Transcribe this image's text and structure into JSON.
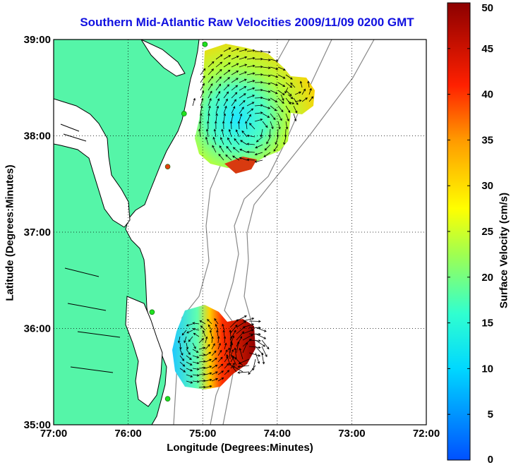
{
  "title": "Southern Mid-Atlantic Raw Velocities 2009/11/09 0200 GMT",
  "chart_data": {
    "type": "heatmap",
    "xlabel": "Longitude (Degrees:Minutes)",
    "ylabel": "Latitude (Degrees:Minutes)",
    "x_ticks": [
      "77:00",
      "76:00",
      "75:00",
      "74:00",
      "73:00",
      "72:00"
    ],
    "y_ticks": [
      "39:00",
      "38:00",
      "37:00",
      "36:00",
      "35:00"
    ],
    "xlim": [
      -77,
      -72
    ],
    "ylim": [
      35,
      39
    ],
    "grid": true,
    "colorbar": {
      "label": "Surface Velocity (cm/s)",
      "range": [
        0,
        50
      ],
      "ticks": [
        "0",
        "5",
        "10",
        "15",
        "20",
        "25",
        "30",
        "35",
        "40",
        "45",
        "50"
      ]
    },
    "stations": [
      {
        "lon": -74.97,
        "lat": 38.95
      },
      {
        "lon": -75.25,
        "lat": 38.23
      },
      {
        "lon": -75.47,
        "lat": 37.68
      },
      {
        "lon": -75.68,
        "lat": 36.17
      },
      {
        "lon": -75.47,
        "lat": 35.27
      }
    ],
    "colors": {
      "land": "#55f5a8",
      "coast": "#000000",
      "bathymetry": "#888888",
      "grid": "#000000"
    }
  }
}
